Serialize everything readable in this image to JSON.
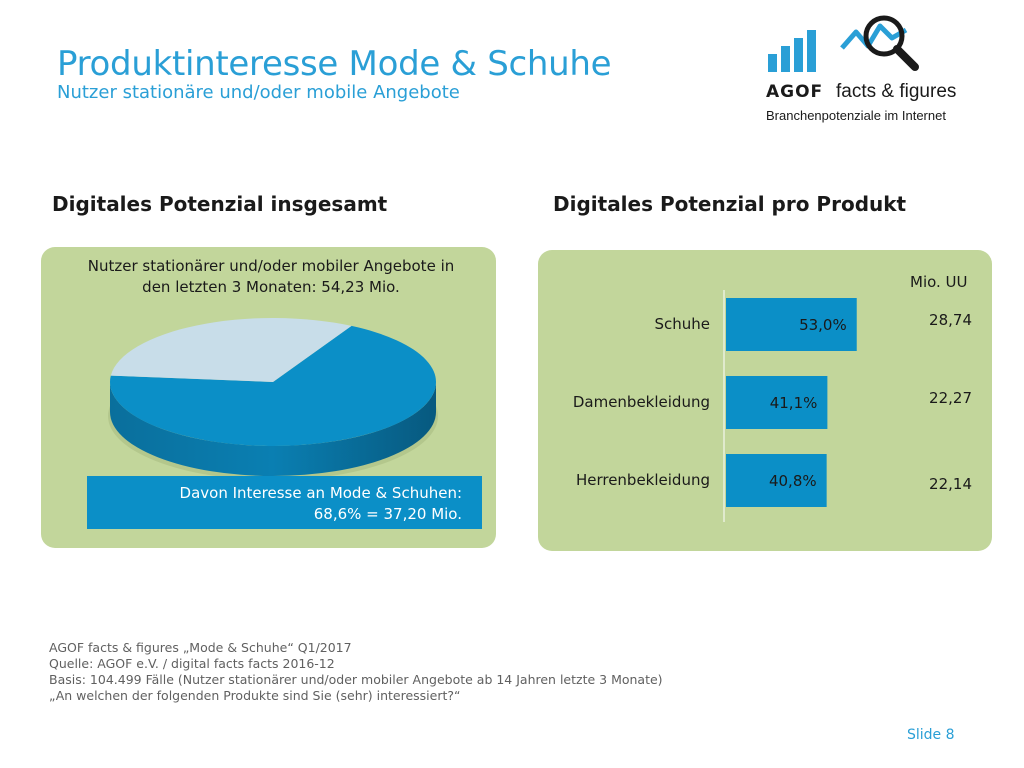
{
  "header": {
    "title": "Produktinteresse Mode & Schuhe",
    "subtitle": "Nutzer stationäre und/oder mobile Angebote"
  },
  "logo": {
    "brand": "AGOF",
    "product": "facts & figures",
    "tagline": "Branchenpotenziale im Internet"
  },
  "left": {
    "heading": "Digitales Potenzial insgesamt",
    "pie_label": "Nutzer stationärer und/oder mobiler Angebote in den letzten 3 Monaten: 54,23 Mio.",
    "callout_line1": "Davon Interesse an Mode & Schuhen:",
    "callout_line2": "68,6% = 37,20 Mio."
  },
  "right": {
    "heading": "Digitales Potenzial pro Produkt",
    "unit_label": "Mio. UU"
  },
  "chart_data": [
    {
      "type": "pie",
      "title": "Nutzer stationärer und/oder mobiler Angebote in den letzten 3 Monaten: 54,23 Mio.",
      "slices": [
        {
          "label": "Davon Interesse an Mode & Schuhen: 68,6% = 37,20 Mio.",
          "value": 68.6,
          "color": "#0b8fc7"
        },
        {
          "value": 31.4,
          "color": "#c8dde9"
        }
      ]
    },
    {
      "type": "bar",
      "orientation": "horizontal",
      "title": "Digitales Potenzial pro Produkt",
      "categories": [
        "Schuhe",
        "Damenbekleidung",
        "Herrenbekleidung"
      ],
      "values": [
        53.0,
        41.1,
        40.8
      ],
      "value_labels": [
        "53,0%",
        "41,1%",
        "40,8%"
      ],
      "secondary_label": "Mio. UU",
      "secondary_values": [
        "28,74",
        "22,27",
        "22,14"
      ],
      "bar_color": "#0b8fc7",
      "grid": false
    }
  ],
  "footer": {
    "lines": [
      "AGOF facts & figures „Mode & Schuhe“ Q1/2017",
      "Quelle: AGOF e.V. / digital facts facts 2016-12",
      "Basis: 104.499 Fälle (Nutzer stationärer und/oder mobiler Angebote ab 14 Jahren letzte 3 Monate)",
      "„An welchen der folgenden Produkte sind Sie (sehr) interessiert?“"
    ],
    "slide_number": "Slide 8"
  },
  "colors": {
    "accent": "#2a9fd6",
    "panel": "#c2d69b",
    "bar": "#0b8fc7"
  }
}
